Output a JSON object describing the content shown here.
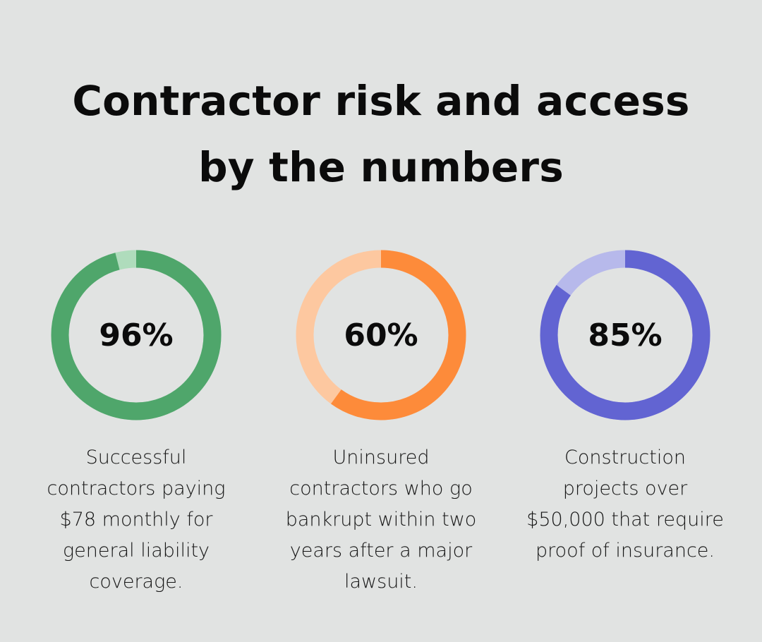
{
  "title_lines": [
    "Contractor risk and access",
    "by the numbers"
  ],
  "chart_data": [
    {
      "type": "pie",
      "variant": "donut",
      "value": 96,
      "value_label": "96%",
      "description_lines": [
        "Successful",
        "contractors paying",
        "$78 monthly for",
        "general liability",
        "coverage."
      ],
      "colors": {
        "filled": "#4fa66b",
        "remaining": "#afdcbc"
      }
    },
    {
      "type": "pie",
      "variant": "donut",
      "value": 60,
      "value_label": "60%",
      "description_lines": [
        "Uninsured",
        "contractors who go",
        "bankrupt within two",
        "years after a major",
        "lawsuit."
      ],
      "colors": {
        "filled": "#fd8b3a",
        "remaining": "#fdc8a0"
      }
    },
    {
      "type": "pie",
      "variant": "donut",
      "value": 85,
      "value_label": "85%",
      "description_lines": [
        "Construction",
        "projects over",
        "$50,000 that require",
        "proof of insurance."
      ],
      "colors": {
        "filled": "#6264d2",
        "remaining": "#b7b9eb"
      }
    }
  ]
}
